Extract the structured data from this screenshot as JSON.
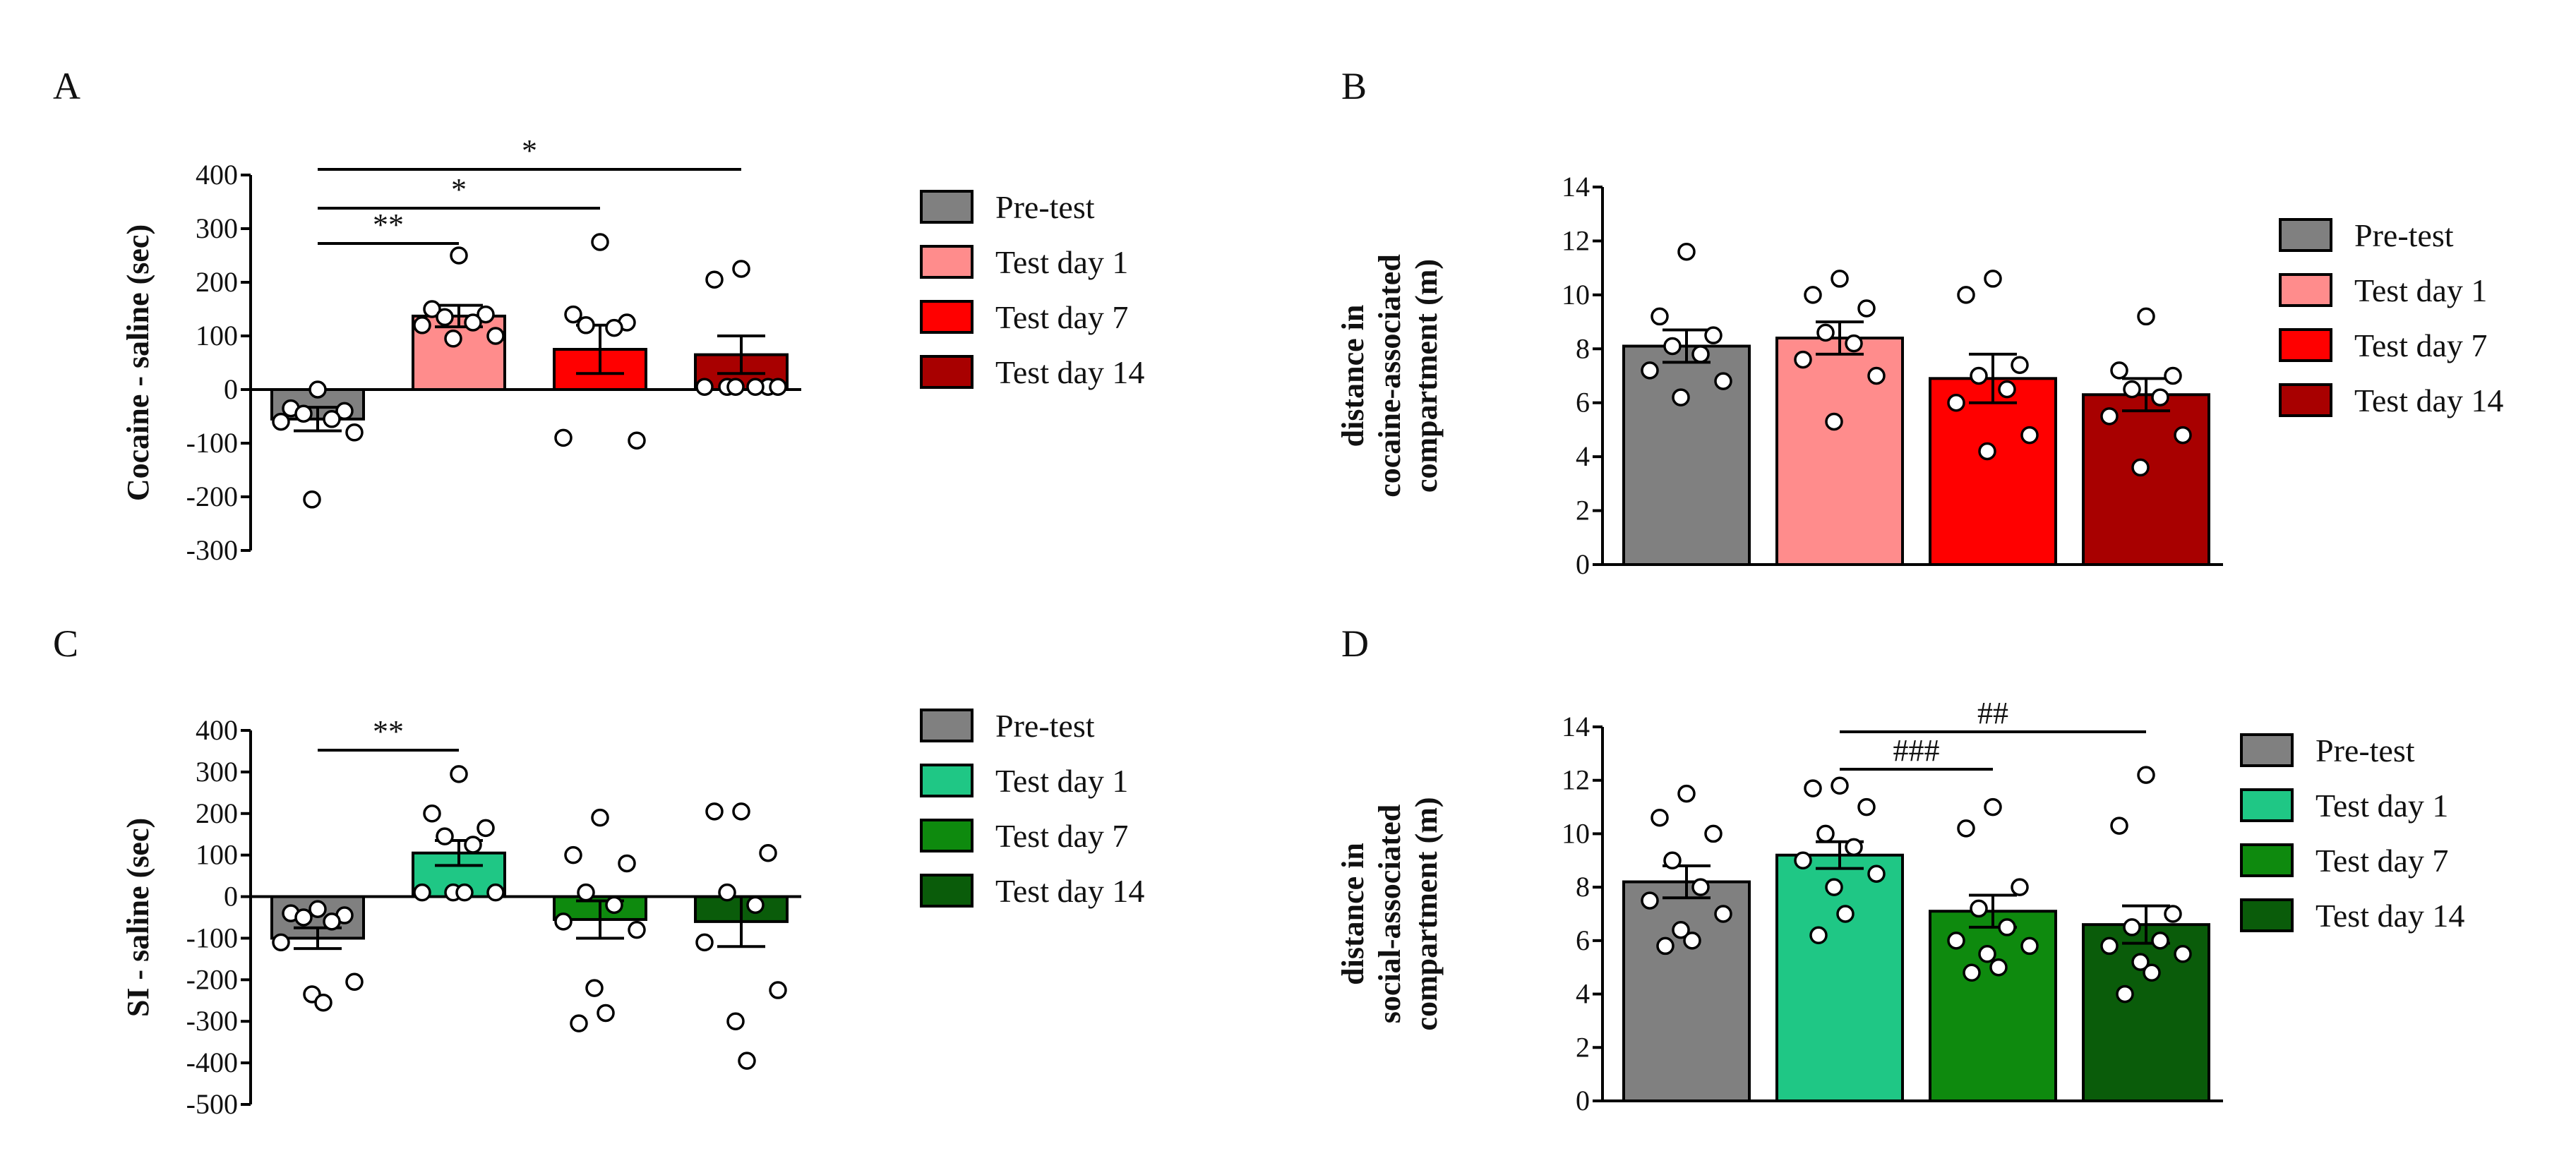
{
  "chart_data": [
    {
      "panel": "A",
      "type": "bar",
      "ylabel": [
        "Cocaine - saline (sec)"
      ],
      "ylim": [
        -300,
        400
      ],
      "yticks": [
        -300,
        -200,
        -100,
        0,
        100,
        200,
        300,
        400
      ],
      "categories": [
        "Pre-test",
        "Test day 1",
        "Test day 7",
        "Test day 14"
      ],
      "values": [
        -55,
        137,
        75,
        65
      ],
      "sem": [
        22,
        20,
        45,
        35
      ],
      "colors": [
        "#808080",
        "#ff8c8c",
        "#ff0000",
        "#a80000"
      ],
      "points": [
        [
          0,
          -35,
          -40,
          -45,
          -55,
          -60,
          -80,
          -205
        ],
        [
          250,
          150,
          140,
          135,
          125,
          120,
          100,
          95
        ],
        [
          275,
          140,
          125,
          120,
          115,
          -90,
          -95
        ],
        [
          225,
          205,
          5,
          5,
          5,
          5,
          5,
          5
        ]
      ],
      "significance": [
        {
          "from": 0,
          "to": 1,
          "label": "**"
        },
        {
          "from": 0,
          "to": 2,
          "label": "*"
        },
        {
          "from": 0,
          "to": 3,
          "label": "*"
        }
      ],
      "legend": [
        "Pre-test",
        "Test day 1",
        "Test day 7",
        "Test day 14"
      ]
    },
    {
      "panel": "B",
      "type": "bar",
      "ylabel": [
        "distance in",
        "cocaine-associated",
        "compartment (m)"
      ],
      "ylim": [
        0,
        14
      ],
      "yticks": [
        0,
        2,
        4,
        6,
        8,
        10,
        12,
        14
      ],
      "categories": [
        "Pre-test",
        "Test day 1",
        "Test day 7",
        "Test day 14"
      ],
      "values": [
        8.1,
        8.4,
        6.9,
        6.3
      ],
      "sem": [
        0.6,
        0.6,
        0.9,
        0.6
      ],
      "colors": [
        "#808080",
        "#ff8c8c",
        "#ff0000",
        "#a80000"
      ],
      "points": [
        [
          11.6,
          9.2,
          8.5,
          8.1,
          7.8,
          7.2,
          6.8,
          6.2
        ],
        [
          10.6,
          10.0,
          9.5,
          8.6,
          8.2,
          7.6,
          7.0,
          5.3
        ],
        [
          10.6,
          10.0,
          7.4,
          7.0,
          6.5,
          6.0,
          4.8,
          4.2
        ],
        [
          9.2,
          7.2,
          7.0,
          6.5,
          6.2,
          5.5,
          4.8,
          3.6
        ]
      ],
      "significance": [],
      "legend": [
        "Pre-test",
        "Test day 1",
        "Test day 7",
        "Test day 14"
      ]
    },
    {
      "panel": "C",
      "type": "bar",
      "ylabel": [
        "SI - saline (sec)"
      ],
      "ylim": [
        -500,
        400
      ],
      "yticks": [
        -500,
        -400,
        -300,
        -200,
        -100,
        0,
        100,
        200,
        300,
        400
      ],
      "categories": [
        "Pre-test",
        "Test day 1",
        "Test day 7",
        "Test day 14"
      ],
      "values": [
        -100,
        105,
        -55,
        -60
      ],
      "sem": [
        25,
        30,
        45,
        60
      ],
      "colors": [
        "#808080",
        "#1fc785",
        "#0e8a0e",
        "#0a5c0a"
      ],
      "points": [
        [
          -30,
          -40,
          -45,
          -50,
          -60,
          -110,
          -205,
          -235,
          -255
        ],
        [
          295,
          200,
          165,
          145,
          125,
          10,
          10,
          10,
          10
        ],
        [
          190,
          100,
          80,
          10,
          -20,
          -60,
          -80,
          -220,
          -280,
          -305
        ],
        [
          205,
          205,
          105,
          10,
          -20,
          -110,
          -225,
          -300,
          -395
        ]
      ],
      "significance": [
        {
          "from": 0,
          "to": 1,
          "label": "**"
        }
      ],
      "legend": [
        "Pre-test",
        "Test day 1",
        "Test day 7",
        "Test day 14"
      ]
    },
    {
      "panel": "D",
      "type": "bar",
      "ylabel": [
        "distance in",
        "social-associated",
        "compartment (m)"
      ],
      "ylim": [
        0,
        14
      ],
      "yticks": [
        0,
        2,
        4,
        6,
        8,
        10,
        12,
        14
      ],
      "categories": [
        "Pre-test",
        "Test day 1",
        "Test day 7",
        "Test day 14"
      ],
      "values": [
        8.2,
        9.2,
        7.1,
        6.6
      ],
      "sem": [
        0.6,
        0.5,
        0.6,
        0.7
      ],
      "colors": [
        "#808080",
        "#1fc785",
        "#0e8a0e",
        "#0a5c0a"
      ],
      "points": [
        [
          11.5,
          10.6,
          10.0,
          9.0,
          8.0,
          7.5,
          7.0,
          6.4,
          6.0,
          5.8
        ],
        [
          11.8,
          11.7,
          11.0,
          10.0,
          9.5,
          9.0,
          8.5,
          8.0,
          7.0,
          6.2
        ],
        [
          11.0,
          10.2,
          8.0,
          7.2,
          6.5,
          6.0,
          5.8,
          5.5,
          5.0,
          4.8
        ],
        [
          12.2,
          10.3,
          7.0,
          6.5,
          6.0,
          5.8,
          5.5,
          5.2,
          4.8,
          4.0
        ]
      ],
      "significance": [
        {
          "from": 1,
          "to": 2,
          "label": "###"
        },
        {
          "from": 1,
          "to": 3,
          "label": "##"
        }
      ],
      "legend": [
        "Pre-test",
        "Test day 1",
        "Test day 7",
        "Test day 14"
      ]
    }
  ]
}
